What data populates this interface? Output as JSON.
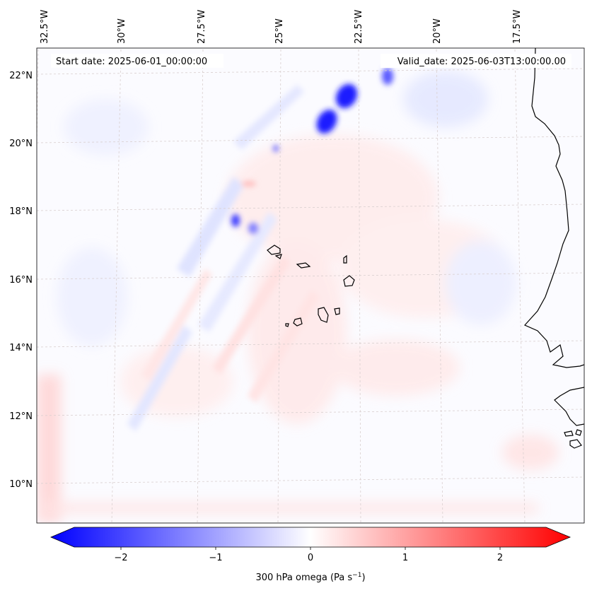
{
  "map": {
    "start_label": "Start date: 2025-06-01_00:00:00",
    "valid_label": "Valid_date: 2025-06-03T13:00:00.00",
    "lon_labels": [
      "32.5°W",
      "30°W",
      "27.5°W",
      "25°W",
      "22.5°W",
      "20°W",
      "17.5°W"
    ],
    "lat_labels": [
      "22°N",
      "20°N",
      "18°N",
      "16°N",
      "14°N",
      "12°N",
      "10°N"
    ],
    "colorbar": {
      "ticks": [
        "−2",
        "−1",
        "0",
        "1",
        "2"
      ],
      "label_main": "300 hPa omega (Pa s",
      "label_sup": "−1",
      "label_close": ")",
      "vmin": -2.6,
      "vmax": 2.6,
      "cmap": "bwr",
      "low_color": "#0000ff",
      "mid_color": "#ffffff",
      "high_color": "#ff0000"
    }
  }
}
